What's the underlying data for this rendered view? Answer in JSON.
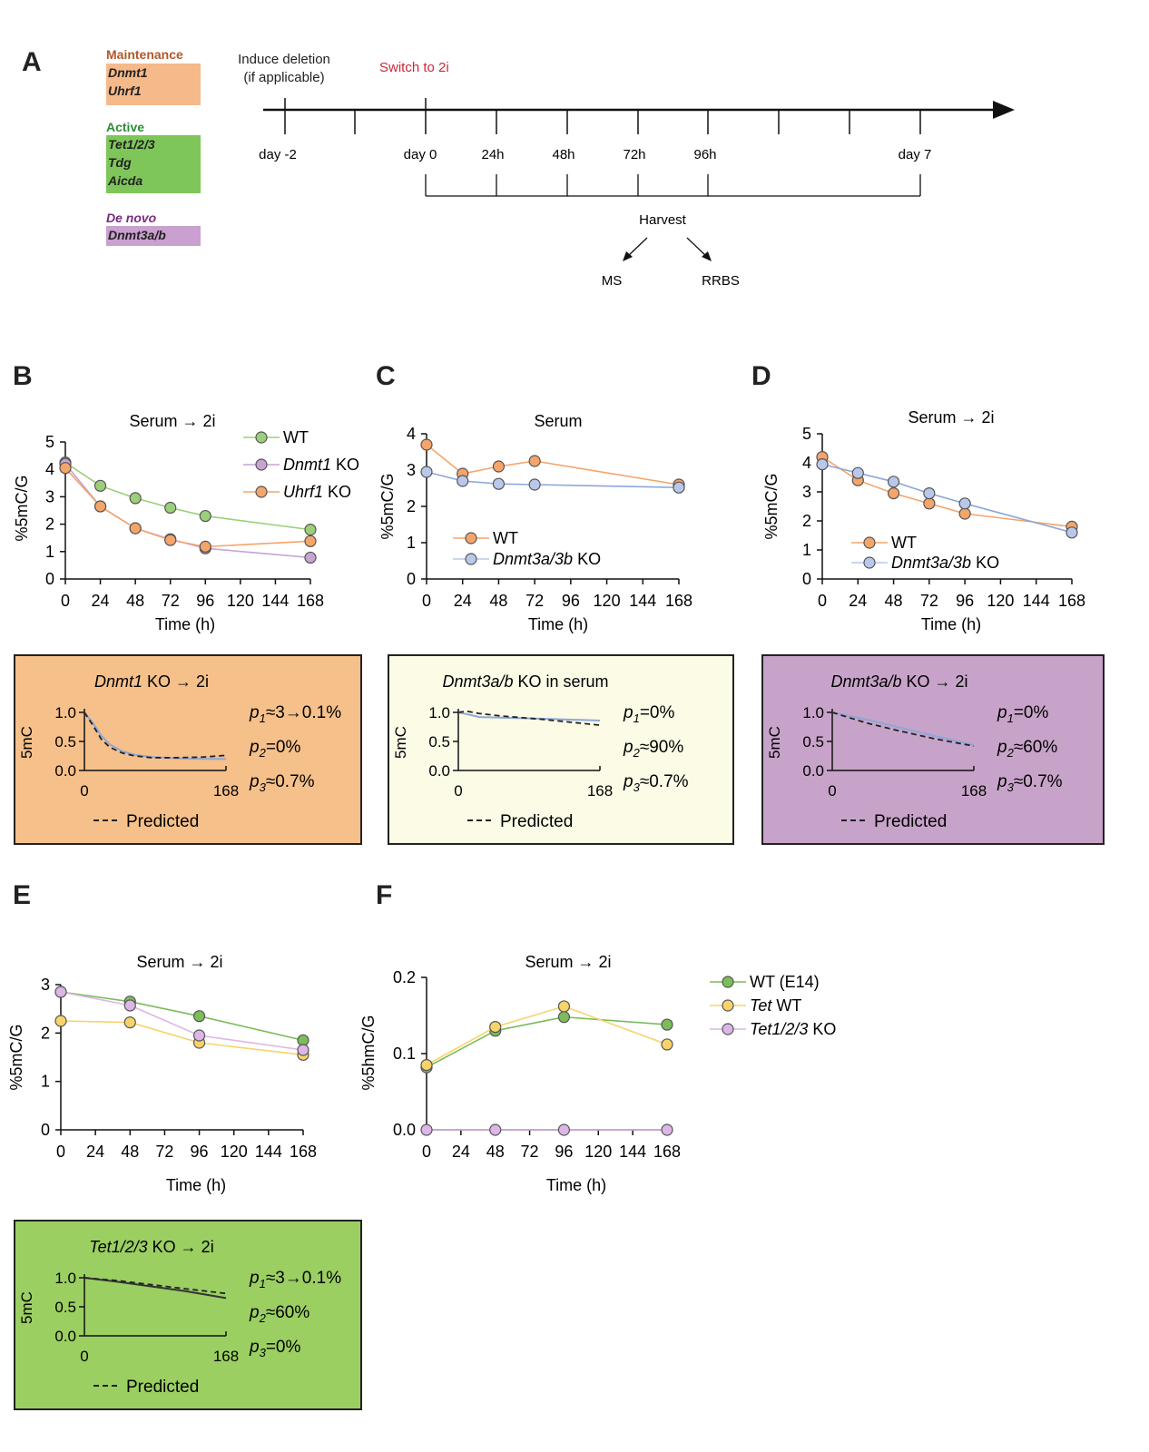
{
  "panel_labels": {
    "A": "A",
    "B": "B",
    "C": "C",
    "D": "D",
    "E": "E",
    "F": "F"
  },
  "panelA": {
    "maintenance": {
      "title": "Maintenance",
      "genes": [
        "Dnmt1",
        "Uhrf1"
      ],
      "color": "#f6b98a",
      "title_color": "#b2582a"
    },
    "active": {
      "title": "Active",
      "genes": [
        "Tet1/2/3",
        "Tdg",
        "Aicda"
      ],
      "color": "#7fc65a",
      "title_color": "#2e8b3a"
    },
    "denovo": {
      "title": "De novo",
      "genes": [
        "Dnmt3a/b"
      ],
      "color": "#c9a0cf",
      "title_color": "#7a2a80"
    },
    "induce_label_1": "Induce deletion",
    "induce_label_2": "(if applicable)",
    "switch_label": "Switch to 2i",
    "switch_color": "#d0253a",
    "timepoints": [
      "day -2",
      "day 0",
      "24h",
      "48h",
      "72h",
      "96h",
      "day 7"
    ],
    "harvest": "Harvest",
    "ms": "MS",
    "rrbs": "RRBS"
  },
  "colors": {
    "wt_green": "#9ccf7a",
    "dnmt1_purple": "#c7a4d4",
    "uhrf1_orange": "#f5a46a",
    "orange": "#f5a46a",
    "blue": "#b9c8ea",
    "yellow": "#f7d36a",
    "purple": "#dcb6e6",
    "green": "#7cbc5a",
    "inset_orange": "#f6c08a",
    "inset_cream": "#fbfbe6",
    "inset_purple": "#c8a3c9",
    "inset_green": "#9bcf62",
    "line_blue": "#8da7d8"
  },
  "chart_data": [
    {
      "id": "B",
      "type": "line",
      "title": "Serum → 2i",
      "xlabel": "Time (h)",
      "ylabel": "%5mC/G",
      "xlim": [
        0,
        168
      ],
      "ylim": [
        0,
        5
      ],
      "xticks": [
        "0",
        "24",
        "48",
        "72",
        "96",
        "120",
        "144",
        "168"
      ],
      "yticks": [
        "0",
        "1",
        "2",
        "3",
        "4",
        "5"
      ],
      "series": [
        {
          "name": "WT",
          "x": [
            0,
            24,
            48,
            72,
            96,
            168
          ],
          "y": [
            4.25,
            3.4,
            2.95,
            2.6,
            2.3,
            1.8
          ]
        },
        {
          "name": "Dnmt1 KO",
          "x": [
            0,
            24,
            48,
            72,
            96,
            168
          ],
          "y": [
            4.2,
            2.65,
            1.85,
            1.45,
            1.12,
            0.78
          ]
        },
        {
          "name": "Uhrf1 KO",
          "x": [
            0,
            24,
            48,
            72,
            96,
            168
          ],
          "y": [
            4.05,
            2.65,
            1.85,
            1.42,
            1.18,
            1.38
          ]
        }
      ]
    },
    {
      "id": "C",
      "type": "line",
      "title": "Serum",
      "xlabel": "Time (h)",
      "ylabel": "%5mC/G",
      "xlim": [
        0,
        168
      ],
      "ylim": [
        0,
        4
      ],
      "xticks": [
        "0",
        "24",
        "48",
        "72",
        "96",
        "120",
        "144",
        "168"
      ],
      "yticks": [
        "0",
        "1",
        "2",
        "3",
        "4"
      ],
      "series": [
        {
          "name": "WT",
          "x": [
            0,
            24,
            48,
            72,
            168
          ],
          "y": [
            3.7,
            2.9,
            3.1,
            3.25,
            2.6
          ]
        },
        {
          "name": "Dnmt3a/3b KO",
          "x": [
            0,
            24,
            48,
            72,
            168
          ],
          "y": [
            2.95,
            2.7,
            2.62,
            2.6,
            2.52
          ]
        }
      ]
    },
    {
      "id": "D",
      "type": "line",
      "title": "Serum → 2i",
      "xlabel": "Time (h)",
      "ylabel": "%5mC/G",
      "xlim": [
        0,
        168
      ],
      "ylim": [
        0,
        5
      ],
      "xticks": [
        "0",
        "24",
        "48",
        "72",
        "96",
        "120",
        "144",
        "168"
      ],
      "yticks": [
        "0",
        "1",
        "2",
        "3",
        "4",
        "5"
      ],
      "series": [
        {
          "name": "WT",
          "x": [
            0,
            24,
            48,
            72,
            96,
            168
          ],
          "y": [
            4.2,
            3.4,
            2.95,
            2.6,
            2.25,
            1.8
          ]
        },
        {
          "name": "Dnmt3a/3b KO",
          "x": [
            0,
            24,
            48,
            72,
            96,
            168
          ],
          "y": [
            3.95,
            3.65,
            3.35,
            2.95,
            2.6,
            1.6
          ]
        }
      ]
    },
    {
      "id": "E",
      "type": "line",
      "title": "Serum → 2i",
      "xlabel": "Time (h)",
      "ylabel": "%5mC/G",
      "xlim": [
        0,
        168
      ],
      "ylim": [
        0,
        3
      ],
      "xticks": [
        "0",
        "24",
        "48",
        "72",
        "96",
        "120",
        "144",
        "168"
      ],
      "yticks": [
        "0",
        "1",
        "2",
        "3"
      ],
      "series": [
        {
          "name": "WT (E14)",
          "x": [
            0,
            48,
            96,
            168
          ],
          "y": [
            2.85,
            2.65,
            2.35,
            1.85
          ]
        },
        {
          "name": "Tet WT",
          "x": [
            0,
            48,
            96,
            168
          ],
          "y": [
            2.25,
            2.22,
            1.8,
            1.55
          ]
        },
        {
          "name": "Tet1/2/3 KO",
          "x": [
            0,
            48,
            96,
            168
          ],
          "y": [
            2.85,
            2.57,
            1.95,
            1.65
          ]
        }
      ]
    },
    {
      "id": "F",
      "type": "line",
      "title": "Serum → 2i",
      "xlabel": "Time (h)",
      "ylabel": "%5hmC/G",
      "xlim": [
        0,
        168
      ],
      "ylim": [
        0,
        0.2
      ],
      "xticks": [
        "0",
        "24",
        "48",
        "72",
        "96",
        "120",
        "144",
        "168"
      ],
      "yticks": [
        "0.0",
        "0.1",
        "0.2"
      ],
      "series": [
        {
          "name": "WT (E14)",
          "x": [
            0,
            48,
            96,
            168
          ],
          "y": [
            0.082,
            0.13,
            0.148,
            0.138
          ]
        },
        {
          "name": "Tet WT",
          "x": [
            0,
            48,
            96,
            168
          ],
          "y": [
            0.085,
            0.135,
            0.162,
            0.112
          ]
        },
        {
          "name": "Tet1/2/3 KO",
          "x": [
            0,
            48,
            96,
            168
          ],
          "y": [
            0,
            0,
            0,
            0
          ]
        }
      ]
    }
  ],
  "insets": {
    "B": {
      "title_italic": "Dnmt1",
      "title_rest": " KO → 2i",
      "ylabel": "5mC",
      "yticks": [
        "1.0",
        "0.5",
        "0.0"
      ],
      "xticks": [
        "0",
        "168"
      ],
      "p1": "≈3→0.1%",
      "p2": "=0%",
      "p3": "≈0.7%",
      "legend": "Predicted",
      "curve_x": [
        0,
        10,
        20,
        30,
        45,
        60,
        80,
        110,
        140,
        168
      ],
      "curve_y": [
        1.0,
        0.82,
        0.6,
        0.45,
        0.33,
        0.27,
        0.23,
        0.21,
        0.2,
        0.2
      ],
      "pred_x": [
        0,
        10,
        20,
        30,
        45,
        60,
        80,
        110,
        140,
        168
      ],
      "pred_y": [
        1.0,
        0.78,
        0.54,
        0.4,
        0.3,
        0.25,
        0.22,
        0.22,
        0.23,
        0.26
      ]
    },
    "C": {
      "title_italic": "Dnmt3a/b",
      "title_rest": " KO in serum",
      "ylabel": "5mC",
      "yticks": [
        "1.0",
        "0.5",
        "0.0"
      ],
      "xticks": [
        "0",
        "168"
      ],
      "p1": "=0%",
      "p2": "≈90%",
      "p3": "≈0.7%",
      "legend": "Predicted",
      "curve_x": [
        0,
        10,
        25,
        50,
        100,
        168
      ],
      "curve_y": [
        1.0,
        0.97,
        0.92,
        0.91,
        0.89,
        0.86
      ],
      "pred_x": [
        0,
        10,
        25,
        50,
        100,
        168
      ],
      "pred_y": [
        1.0,
        1.02,
        0.98,
        0.94,
        0.88,
        0.78
      ]
    },
    "D": {
      "title_italic": "Dnmt3a/b",
      "title_rest": " KO → 2i",
      "ylabel": "5mC",
      "yticks": [
        "1.0",
        "0.5",
        "0.0"
      ],
      "xticks": [
        "0",
        "168"
      ],
      "p1": "=0%",
      "p2": "≈60%",
      "p3": "≈0.7%",
      "legend": "Predicted",
      "curve_x": [
        0,
        40,
        80,
        120,
        168
      ],
      "curve_y": [
        1.0,
        0.88,
        0.74,
        0.6,
        0.44
      ],
      "pred_x": [
        0,
        40,
        80,
        120,
        168
      ],
      "pred_y": [
        1.0,
        0.82,
        0.68,
        0.55,
        0.42
      ]
    },
    "E": {
      "title_italic": "Tet1/2/3",
      "title_rest": " KO → 2i",
      "ylabel": "5mC",
      "yticks": [
        "1.0",
        "0.5",
        "0.0"
      ],
      "xticks": [
        "0",
        "168"
      ],
      "p1": "≈3→0.1%",
      "p2": "≈60%",
      "p3": "=0%",
      "legend": "Predicted",
      "curve_x": [
        0,
        40,
        80,
        120,
        168
      ],
      "curve_y": [
        1.0,
        0.93,
        0.85,
        0.77,
        0.65
      ],
      "pred_x": [
        0,
        40,
        80,
        120,
        168
      ],
      "pred_y": [
        1.0,
        0.95,
        0.88,
        0.81,
        0.73
      ]
    }
  }
}
